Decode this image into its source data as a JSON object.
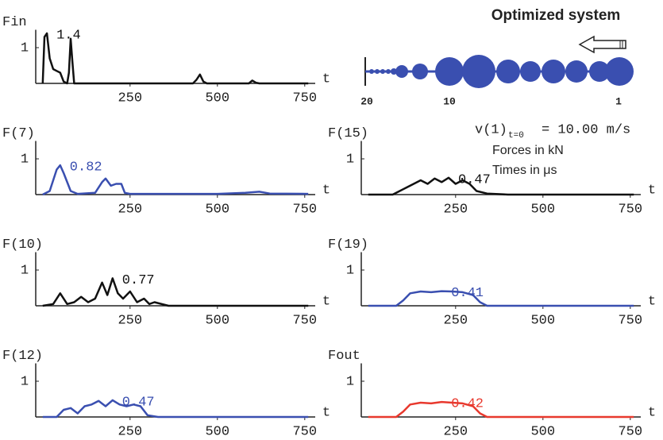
{
  "chart_data": [
    {
      "type": "line",
      "title": "Fin",
      "xlabel": "t",
      "annotation": "1.4",
      "xlim": [
        -20,
        780
      ],
      "ylim": [
        0,
        1.5
      ],
      "xticks": [
        250,
        500,
        750
      ],
      "yticks": [
        1
      ],
      "series": [
        {
          "color": "#111111",
          "x": [
            0,
            5,
            12,
            20,
            30,
            40,
            50,
            60,
            70,
            75,
            80,
            85,
            90,
            100,
            430,
            440,
            450,
            460,
            470,
            590,
            600,
            610,
            620,
            760
          ],
          "values": [
            0,
            1.3,
            1.4,
            0.7,
            0.4,
            0.35,
            0.3,
            0.05,
            0,
            0.3,
            1.25,
            0.6,
            0,
            0,
            0,
            0.1,
            0.25,
            0.05,
            0,
            0,
            0.08,
            0.02,
            0,
            0
          ]
        }
      ]
    },
    {
      "type": "line",
      "title": "F(7)",
      "xlabel": "t",
      "annotation": "0.82",
      "xlim": [
        -20,
        780
      ],
      "ylim": [
        0,
        1.5
      ],
      "xticks": [
        250,
        500,
        750
      ],
      "yticks": [
        1
      ],
      "series": [
        {
          "color": "#3a4fb0",
          "x": [
            0,
            20,
            40,
            50,
            60,
            80,
            100,
            150,
            170,
            180,
            195,
            210,
            225,
            235,
            250,
            300,
            500,
            580,
            620,
            650,
            760
          ],
          "values": [
            0,
            0.1,
            0.7,
            0.82,
            0.6,
            0.1,
            0.02,
            0.05,
            0.35,
            0.45,
            0.25,
            0.3,
            0.3,
            0.05,
            0.02,
            0.02,
            0.02,
            0.05,
            0.08,
            0.03,
            0.02
          ]
        }
      ]
    },
    {
      "type": "line",
      "title": "F(15)",
      "xlabel": "t",
      "annotation": "0.47",
      "xlim": [
        -20,
        780
      ],
      "ylim": [
        0,
        1.5
      ],
      "xticks": [
        250,
        500,
        750
      ],
      "yticks": [
        1
      ],
      "series": [
        {
          "color": "#111111",
          "x": [
            0,
            70,
            90,
            110,
            130,
            150,
            170,
            190,
            210,
            230,
            250,
            270,
            290,
            310,
            340,
            400,
            760
          ],
          "values": [
            0,
            0,
            0.1,
            0.2,
            0.3,
            0.4,
            0.3,
            0.45,
            0.35,
            0.47,
            0.3,
            0.4,
            0.3,
            0.1,
            0.03,
            0,
            0
          ]
        }
      ]
    },
    {
      "type": "line",
      "title": "F(10)",
      "xlabel": "t",
      "annotation": "0.77",
      "xlim": [
        -20,
        780
      ],
      "ylim": [
        0,
        1.5
      ],
      "xticks": [
        250,
        500,
        750
      ],
      "yticks": [
        1
      ],
      "series": [
        {
          "color": "#111111",
          "x": [
            0,
            30,
            50,
            70,
            90,
            110,
            130,
            150,
            170,
            185,
            200,
            215,
            230,
            250,
            270,
            290,
            305,
            320,
            360,
            760
          ],
          "values": [
            0,
            0.05,
            0.35,
            0.05,
            0.1,
            0.25,
            0.1,
            0.2,
            0.65,
            0.3,
            0.77,
            0.35,
            0.2,
            0.4,
            0.1,
            0.2,
            0.05,
            0.1,
            0,
            0
          ]
        }
      ]
    },
    {
      "type": "line",
      "title": "F(19)",
      "xlabel": "t",
      "annotation": "0.41",
      "xlim": [
        -20,
        780
      ],
      "ylim": [
        0,
        1.5
      ],
      "xticks": [
        250,
        500,
        750
      ],
      "yticks": [
        1
      ],
      "series": [
        {
          "color": "#3a4fb0",
          "x": [
            0,
            80,
            100,
            120,
            150,
            180,
            210,
            240,
            270,
            300,
            320,
            340,
            760
          ],
          "values": [
            0,
            0,
            0.15,
            0.35,
            0.4,
            0.38,
            0.41,
            0.4,
            0.38,
            0.3,
            0.1,
            0,
            0
          ]
        }
      ]
    },
    {
      "type": "line",
      "title": "F(12)",
      "xlabel": "t",
      "annotation": "0.47",
      "xlim": [
        -20,
        780
      ],
      "ylim": [
        0,
        1.5
      ],
      "xticks": [
        250,
        500,
        750
      ],
      "yticks": [
        1
      ],
      "series": [
        {
          "color": "#3a4fb0",
          "x": [
            0,
            40,
            60,
            80,
            100,
            120,
            140,
            160,
            180,
            200,
            220,
            240,
            260,
            280,
            300,
            330,
            370,
            760
          ],
          "values": [
            0,
            0,
            0.2,
            0.25,
            0.1,
            0.3,
            0.35,
            0.45,
            0.3,
            0.47,
            0.35,
            0.3,
            0.35,
            0.3,
            0.05,
            0,
            0,
            0
          ]
        }
      ]
    },
    {
      "type": "line",
      "title": "Fout",
      "xlabel": "t",
      "annotation": "0.42",
      "xlim": [
        -20,
        780
      ],
      "ylim": [
        0,
        1.5
      ],
      "xticks": [
        250,
        500,
        750
      ],
      "yticks": [
        1
      ],
      "series": [
        {
          "color": "#e8392e",
          "x": [
            0,
            80,
            100,
            120,
            150,
            180,
            210,
            240,
            270,
            300,
            320,
            340,
            760
          ],
          "values": [
            0,
            0,
            0.15,
            0.35,
            0.4,
            0.38,
            0.42,
            0.4,
            0.38,
            0.3,
            0.1,
            0,
            0
          ]
        }
      ]
    }
  ],
  "system": {
    "title": "Optimized system",
    "labels": [
      "20",
      "10",
      "1"
    ]
  },
  "notes": {
    "velocity": "v(1)",
    "subscript": "t=0",
    "velocity_value": "= 10.00 m/s",
    "forces": "Forces in kN",
    "times": "Times in μs"
  }
}
